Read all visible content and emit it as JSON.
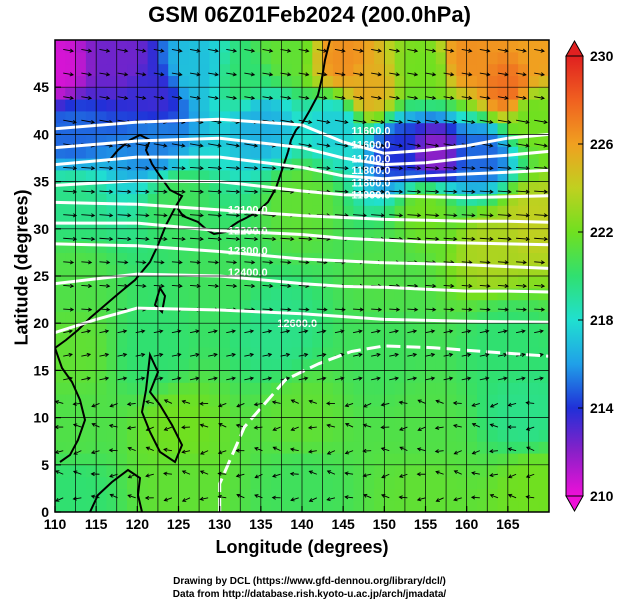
{
  "title": "GSM 06Z01Feb2024 (200.0hPa)",
  "xlabel": "Longitude (degrees)",
  "ylabel": "Latitude  (degrees)",
  "credits": [
    "Drawing by DCL (https://www.gfd-dennou.org/library/dcl/)",
    "Data from http://database.rish.kyoto-u.ac.jp/arch/jmadata/"
  ],
  "chart_data": {
    "type": "heatmap",
    "title": "GSM 06Z01Feb2024 (200.0hPa)",
    "xlabel": "Longitude (degrees)",
    "ylabel": "Latitude  (degrees)",
    "xlim": [
      110,
      170
    ],
    "ylim": [
      0,
      50
    ],
    "x_ticks": [
      110,
      115,
      120,
      125,
      130,
      135,
      140,
      145,
      150,
      155,
      160,
      165
    ],
    "y_ticks": [
      0,
      5,
      10,
      15,
      20,
      25,
      30,
      35,
      40,
      45
    ],
    "grid": true,
    "colorbar": {
      "ticks": [
        210,
        214,
        218,
        222,
        226,
        230
      ],
      "range": [
        210,
        230
      ],
      "colors": [
        "#ee10d8",
        "#8a20c8",
        "#2030d8",
        "#20a0e8",
        "#20e0d0",
        "#30e070",
        "#70e020",
        "#c0d020",
        "#f0a020",
        "#f06020",
        "#e02020"
      ]
    },
    "contour_labels": [
      "11600.0",
      "11600.0",
      "11700.0",
      "11800.0",
      "11800.0",
      "11900.0",
      "12100.0",
      "12200.0",
      "12300.0",
      "12400.0",
      "12600.0"
    ],
    "contours": [
      {
        "level": "11600.0",
        "points": [
          [
            110,
            40.6
          ],
          [
            120,
            41.3
          ],
          [
            130,
            41.6
          ],
          [
            140,
            41.0
          ],
          [
            145,
            39.2
          ],
          [
            150,
            38.0
          ],
          [
            155,
            38.3
          ],
          [
            160,
            38.8
          ],
          [
            165,
            39.6
          ],
          [
            170,
            40.0
          ]
        ]
      },
      {
        "level": "11700.0",
        "points": [
          [
            110,
            38.6
          ],
          [
            120,
            39.3
          ],
          [
            130,
            39.6
          ],
          [
            140,
            38.6
          ],
          [
            145,
            37.5
          ],
          [
            150,
            36.8
          ],
          [
            155,
            37.0
          ],
          [
            160,
            37.5
          ],
          [
            165,
            37.8
          ],
          [
            170,
            38.2
          ]
        ]
      },
      {
        "level": "11800.0",
        "points": [
          [
            110,
            36.8
          ],
          [
            120,
            37.6
          ],
          [
            130,
            37.6
          ],
          [
            140,
            36.5
          ],
          [
            145,
            35.6
          ],
          [
            150,
            35.3
          ],
          [
            155,
            35.6
          ],
          [
            160,
            35.8
          ],
          [
            165,
            36.0
          ],
          [
            170,
            36.2
          ]
        ]
      },
      {
        "level": "11900.0",
        "points": [
          [
            110,
            34.6
          ],
          [
            120,
            35.1
          ],
          [
            130,
            35.0
          ],
          [
            140,
            34.0
          ],
          [
            145,
            33.6
          ],
          [
            150,
            33.5
          ],
          [
            155,
            33.4
          ],
          [
            160,
            33.3
          ],
          [
            165,
            33.4
          ],
          [
            170,
            33.5
          ]
        ]
      },
      {
        "level": "12100.0",
        "points": [
          [
            110,
            32.8
          ],
          [
            120,
            32.6
          ],
          [
            130,
            32.0
          ],
          [
            140,
            31.4
          ],
          [
            145,
            31.2
          ],
          [
            150,
            31.0
          ],
          [
            155,
            30.9
          ],
          [
            160,
            30.8
          ],
          [
            165,
            30.8
          ],
          [
            170,
            30.7
          ]
        ]
      },
      {
        "level": "12200.0",
        "points": [
          [
            110,
            30.6
          ],
          [
            120,
            30.6
          ],
          [
            130,
            29.8
          ],
          [
            140,
            29.4
          ],
          [
            145,
            29.0
          ],
          [
            150,
            28.8
          ],
          [
            155,
            28.6
          ],
          [
            160,
            28.5
          ],
          [
            165,
            28.4
          ],
          [
            170,
            28.3
          ]
        ]
      },
      {
        "level": "12300.0",
        "points": [
          [
            110,
            28.4
          ],
          [
            120,
            28.2
          ],
          [
            130,
            27.6
          ],
          [
            140,
            26.8
          ],
          [
            145,
            26.6
          ],
          [
            150,
            26.4
          ],
          [
            155,
            26.3
          ],
          [
            160,
            26.2
          ],
          [
            165,
            26.0
          ],
          [
            170,
            25.8
          ]
        ]
      },
      {
        "level": "12400.0",
        "points": [
          [
            110,
            24.2
          ],
          [
            120,
            25.2
          ],
          [
            130,
            25.0
          ],
          [
            140,
            24.2
          ],
          [
            145,
            23.9
          ],
          [
            150,
            23.8
          ],
          [
            155,
            23.6
          ],
          [
            160,
            23.4
          ],
          [
            165,
            23.4
          ],
          [
            170,
            23.3
          ]
        ]
      },
      {
        "level": "12500.0",
        "points": [
          [
            110,
            19.0
          ],
          [
            115,
            20.4
          ],
          [
            120,
            21.6
          ],
          [
            130,
            21.4
          ],
          [
            140,
            21.0
          ],
          [
            150,
            20.4
          ],
          [
            160,
            20.2
          ],
          [
            170,
            20.1
          ]
        ]
      },
      {
        "level": "12600.0",
        "points": [
          [
            130,
            0
          ],
          [
            130,
            3
          ],
          [
            133,
            9
          ],
          [
            138,
            14
          ],
          [
            142,
            15.7
          ],
          [
            146,
            17.0
          ],
          [
            150,
            17.6
          ],
          [
            156,
            17.4
          ],
          [
            162,
            17.0
          ],
          [
            170,
            16.5
          ]
        ]
      }
    ],
    "fields": [
      {
        "name": "temperature",
        "points": [
          {
            "lon": 110,
            "lat": 47,
            "value": 210.5
          },
          {
            "lon": 118,
            "lat": 48,
            "value": 212.5
          },
          {
            "lon": 122,
            "lat": 44,
            "value": 213.5
          },
          {
            "lon": 127,
            "lat": 47,
            "value": 217.0
          },
          {
            "lon": 133,
            "lat": 46,
            "value": 220.0
          },
          {
            "lon": 138,
            "lat": 49,
            "value": 221.5
          },
          {
            "lon": 145,
            "lat": 48,
            "value": 226.5
          },
          {
            "lon": 148,
            "lat": 45,
            "value": 225.5
          },
          {
            "lon": 155,
            "lat": 47,
            "value": 222.0
          },
          {
            "lon": 160,
            "lat": 48,
            "value": 226.5
          },
          {
            "lon": 165,
            "lat": 45,
            "value": 227.5
          },
          {
            "lon": 169,
            "lat": 49,
            "value": 226.0
          },
          {
            "lon": 112,
            "lat": 40,
            "value": 215.0
          },
          {
            "lon": 122,
            "lat": 39,
            "value": 215.5
          },
          {
            "lon": 135,
            "lat": 41,
            "value": 216.5
          },
          {
            "lon": 144,
            "lat": 41,
            "value": 217.5
          },
          {
            "lon": 152,
            "lat": 38,
            "value": 214.0
          },
          {
            "lon": 156,
            "lat": 38,
            "value": 212.0
          },
          {
            "lon": 162,
            "lat": 38,
            "value": 215.0
          },
          {
            "lon": 168,
            "lat": 42,
            "value": 222.0
          },
          {
            "lon": 112,
            "lat": 33,
            "value": 219.5
          },
          {
            "lon": 125,
            "lat": 33,
            "value": 220.5
          },
          {
            "lon": 140,
            "lat": 33,
            "value": 221.5
          },
          {
            "lon": 155,
            "lat": 32,
            "value": 222.0
          },
          {
            "lon": 168,
            "lat": 31,
            "value": 224.0
          },
          {
            "lon": 163,
            "lat": 28,
            "value": 223.5
          },
          {
            "lon": 112,
            "lat": 25,
            "value": 221.0
          },
          {
            "lon": 130,
            "lat": 25,
            "value": 220.5
          },
          {
            "lon": 150,
            "lat": 25,
            "value": 221.0
          },
          {
            "lon": 112,
            "lat": 17,
            "value": 221.5
          },
          {
            "lon": 122,
            "lat": 17,
            "value": 220.0
          },
          {
            "lon": 137,
            "lat": 19,
            "value": 219.5
          },
          {
            "lon": 150,
            "lat": 17,
            "value": 220.5
          },
          {
            "lon": 165,
            "lat": 18,
            "value": 220.0
          },
          {
            "lon": 112,
            "lat": 9,
            "value": 221.0
          },
          {
            "lon": 125,
            "lat": 9,
            "value": 222.0
          },
          {
            "lon": 140,
            "lat": 10,
            "value": 221.5
          },
          {
            "lon": 155,
            "lat": 9,
            "value": 221.0
          },
          {
            "lon": 167,
            "lat": 10,
            "value": 219.5
          },
          {
            "lon": 112,
            "lat": 2,
            "value": 220.0
          },
          {
            "lon": 125,
            "lat": 3,
            "value": 221.5
          },
          {
            "lon": 140,
            "lat": 3,
            "value": 220.5
          },
          {
            "lon": 155,
            "lat": 2,
            "value": 221.5
          },
          {
            "lon": 168,
            "lat": 3,
            "value": 222.0
          }
        ]
      }
    ]
  }
}
